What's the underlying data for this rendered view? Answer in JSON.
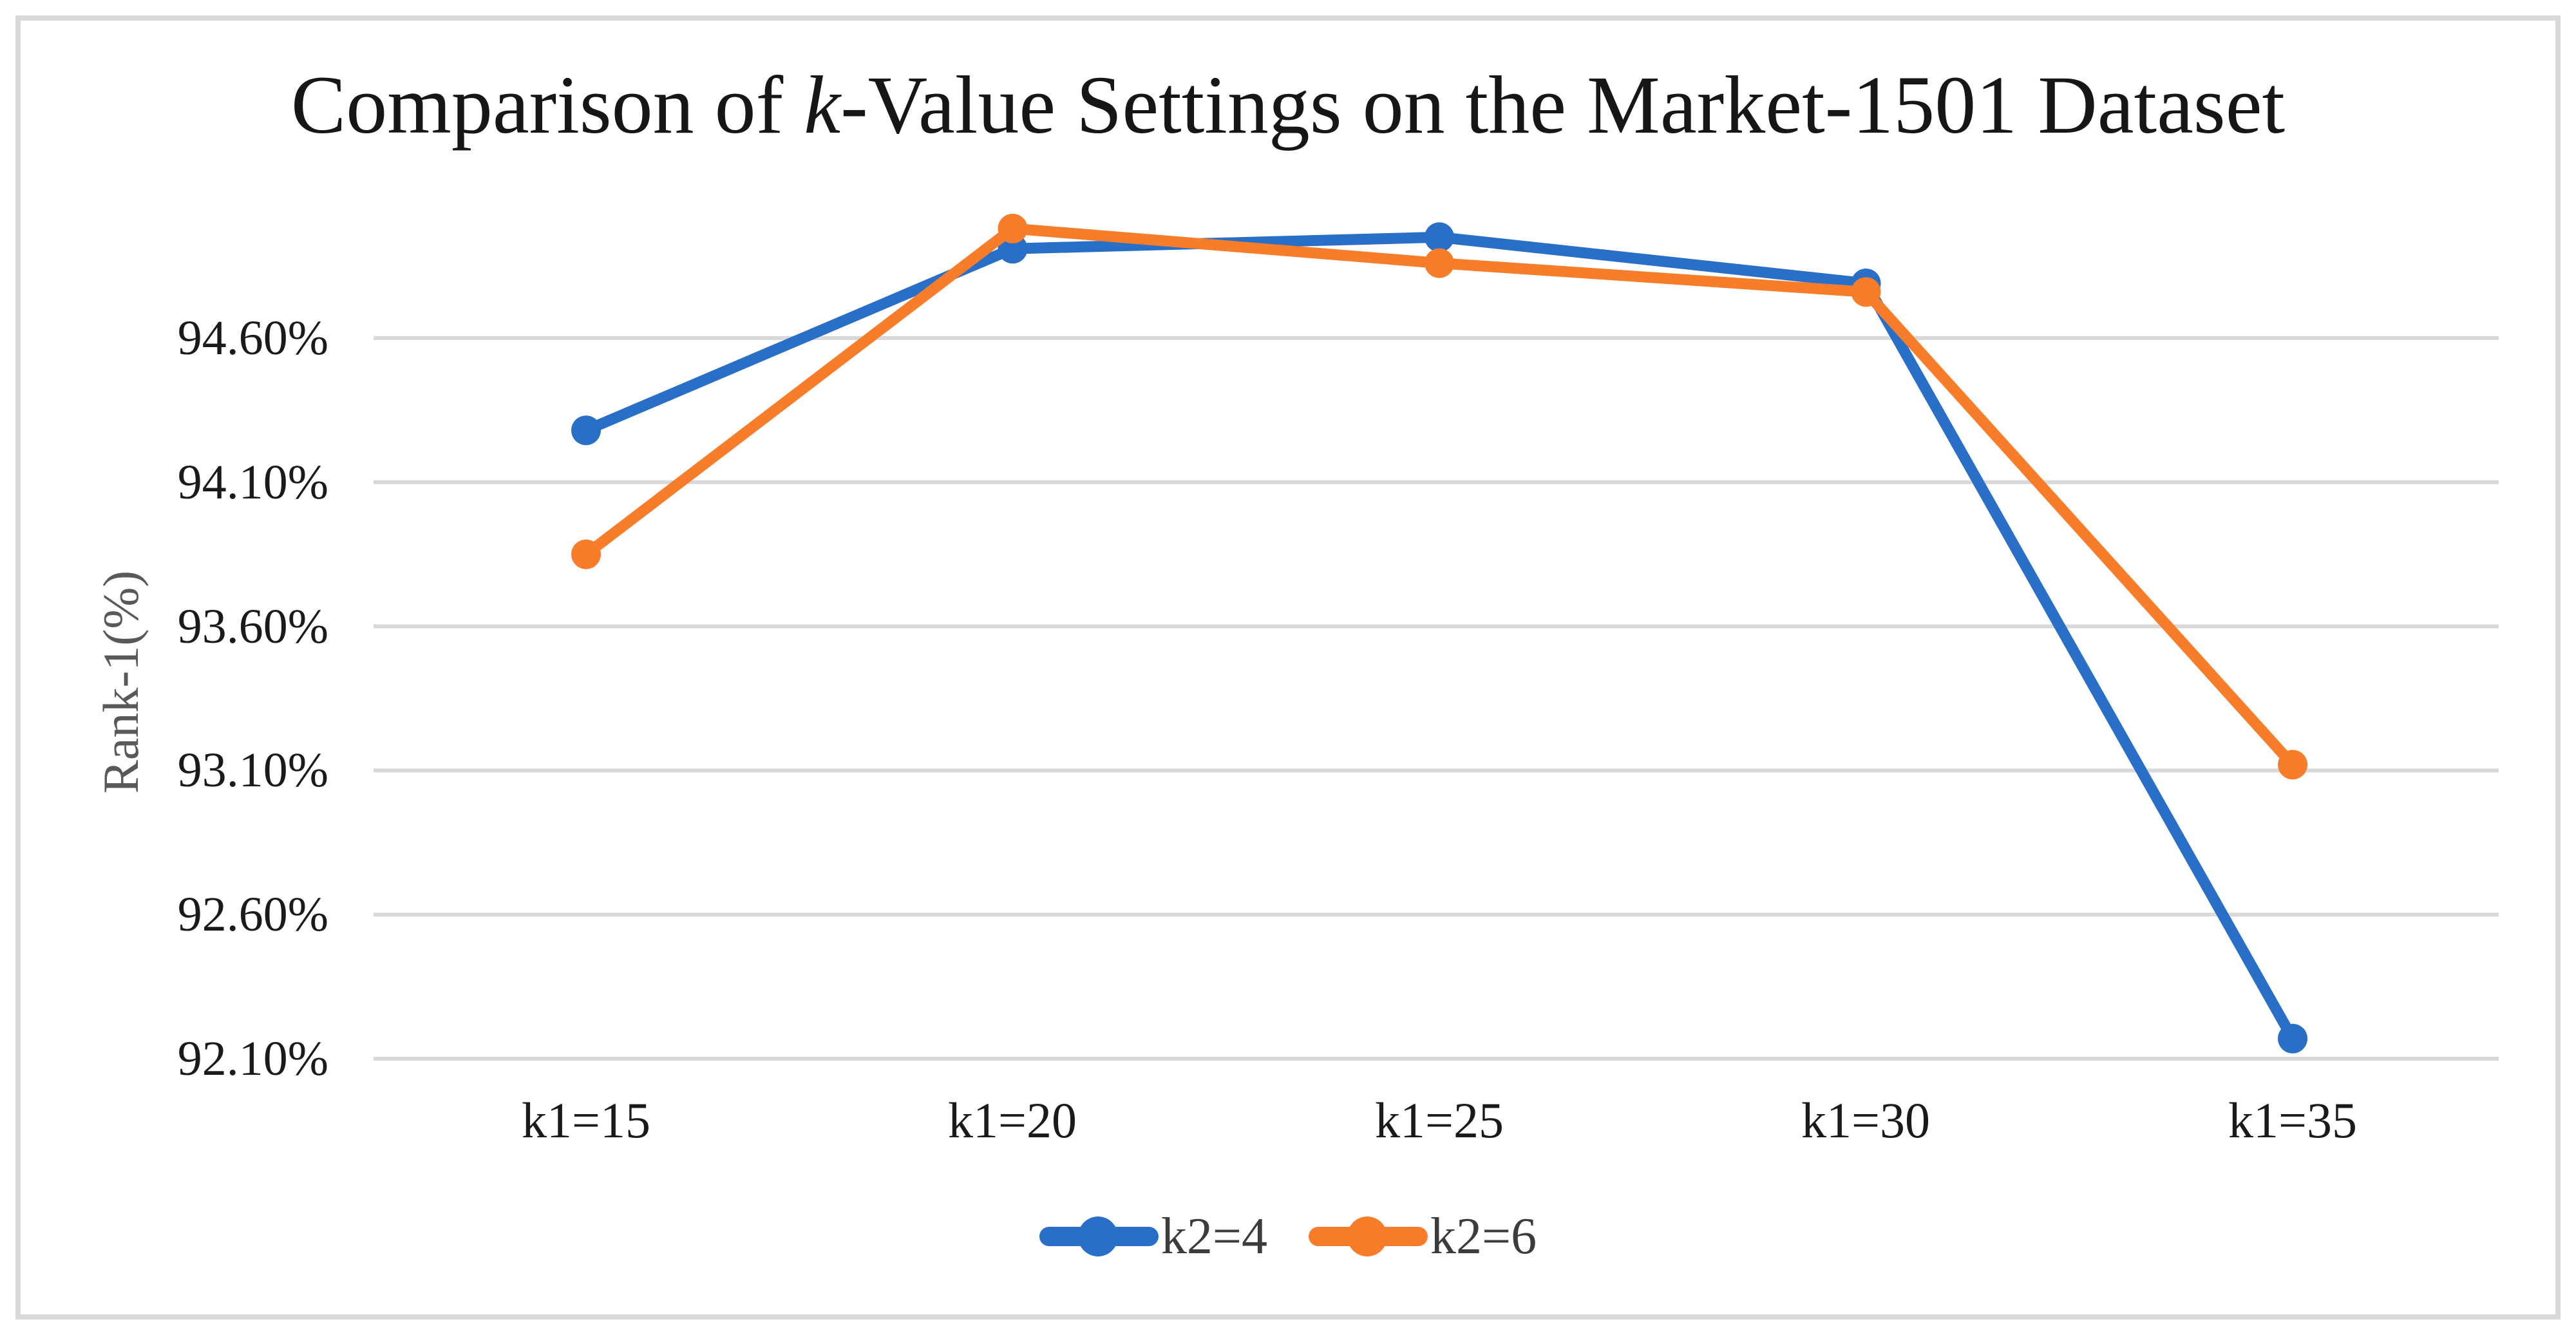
{
  "figure": {
    "title_prefix": "Comparison of ",
    "title_italic": "k",
    "title_suffix": "-Value Settings on the Market-1501 Dataset"
  },
  "chart_data": {
    "type": "line",
    "title": "Comparison of k-Value Settings on the Market-1501 Dataset",
    "xlabel": "",
    "ylabel": "Rank-1(%)",
    "categories": [
      "k1=15",
      "k1=20",
      "k1=25",
      "k1=30",
      "k1=35"
    ],
    "series": [
      {
        "name": "k2=4",
        "color": "#2A6FC7",
        "marker": "circle",
        "values": [
          94.28,
          94.91,
          94.95,
          94.79,
          92.17
        ]
      },
      {
        "name": "k2=6",
        "color": "#F87D2A",
        "marker": "circle",
        "values": [
          93.85,
          94.98,
          94.86,
          94.76,
          93.12
        ]
      }
    ],
    "yticks": {
      "values": [
        94.6,
        94.1,
        93.6,
        93.1,
        92.6,
        92.1
      ],
      "labels": [
        "94.60%",
        "94.10%",
        "93.60%",
        "93.10%",
        "92.60%",
        "92.10%"
      ]
    },
    "ylim": [
      91.9,
      95.1
    ],
    "grid": "horizontal",
    "legend_position": "bottom",
    "legend": [
      "k2=4",
      "k2=6"
    ],
    "colors": {
      "gridline": "#D9D9D9",
      "frame_border": "#D9D9D9",
      "tick_text": "#1A1A1A",
      "axis_title_text": "#595959",
      "legend_text": "#3C3C3C",
      "background": "#FFFFFF"
    }
  }
}
